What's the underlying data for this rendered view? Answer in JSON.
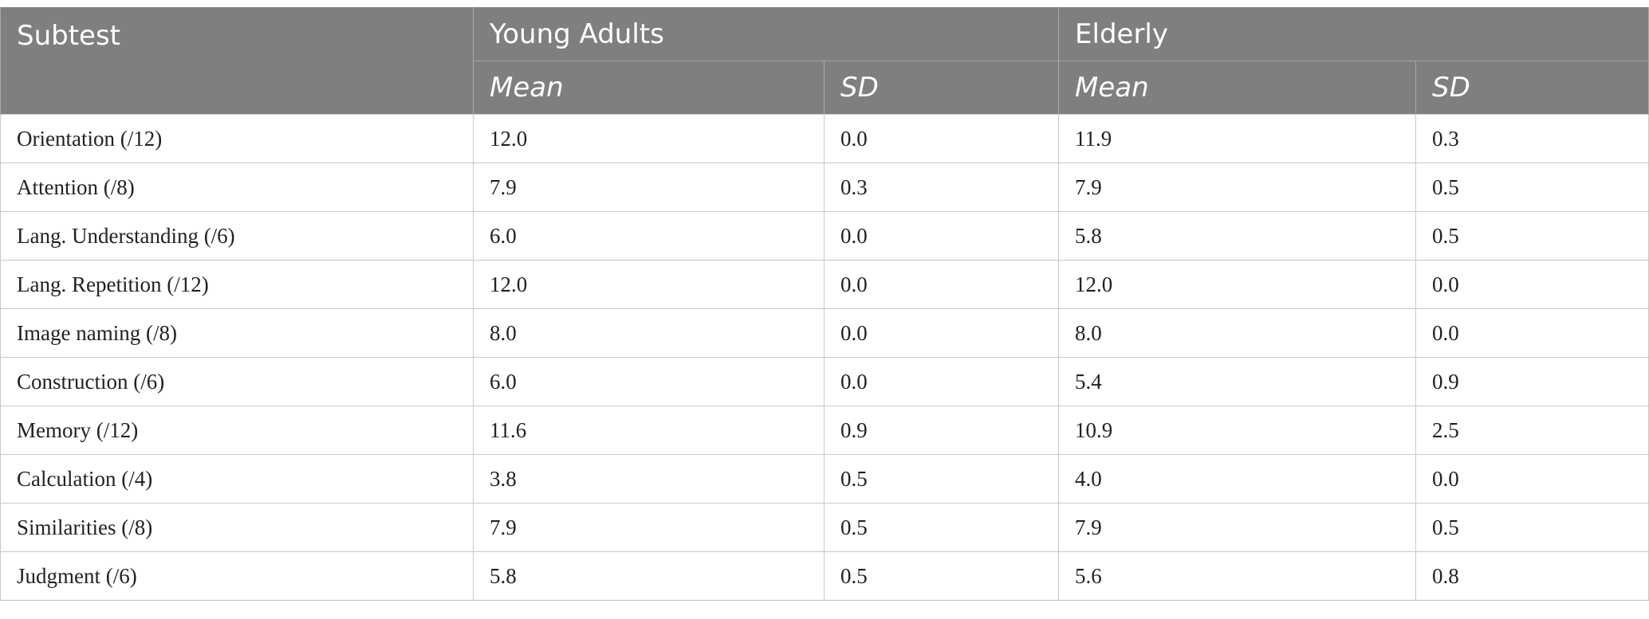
{
  "header": {
    "subtest_label": "Subtest",
    "group1_label": "Young Adults",
    "group2_label": "Elderly",
    "mean_label": "Mean",
    "sd_label": "SD"
  },
  "rows": [
    {
      "subtest": "Orientation (/12)",
      "ya_mean": "12.0",
      "ya_sd": "0.0",
      "el_mean": "11.9",
      "el_sd": "0.3"
    },
    {
      "subtest": "Attention (/8)",
      "ya_mean": "7.9",
      "ya_sd": "0.3",
      "el_mean": "7.9",
      "el_sd": "0.5"
    },
    {
      "subtest": "Lang. Understanding (/6)",
      "ya_mean": "6.0",
      "ya_sd": "0.0",
      "el_mean": "5.8",
      "el_sd": "0.5"
    },
    {
      "subtest": "Lang. Repetition (/12)",
      "ya_mean": "12.0",
      "ya_sd": "0.0",
      "el_mean": "12.0",
      "el_sd": "0.0"
    },
    {
      "subtest": "Image naming (/8)",
      "ya_mean": "8.0",
      "ya_sd": "0.0",
      "el_mean": "8.0",
      "el_sd": "0.0"
    },
    {
      "subtest": "Construction (/6)",
      "ya_mean": "6.0",
      "ya_sd": "0.0",
      "el_mean": "5.4",
      "el_sd": "0.9"
    },
    {
      "subtest": "Memory (/12)",
      "ya_mean": "11.6",
      "ya_sd": "0.9",
      "el_mean": "10.9",
      "el_sd": "2.5"
    },
    {
      "subtest": "Calculation (/4)",
      "ya_mean": "3.8",
      "ya_sd": "0.5",
      "el_mean": "4.0",
      "el_sd": "0.0"
    },
    {
      "subtest": "Similarities (/8)",
      "ya_mean": "7.9",
      "ya_sd": "0.5",
      "el_mean": "7.9",
      "el_sd": "0.5"
    },
    {
      "subtest": "Judgment (/6)",
      "ya_mean": "5.8",
      "ya_sd": "0.5",
      "el_mean": "5.6",
      "el_sd": "0.8"
    }
  ]
}
